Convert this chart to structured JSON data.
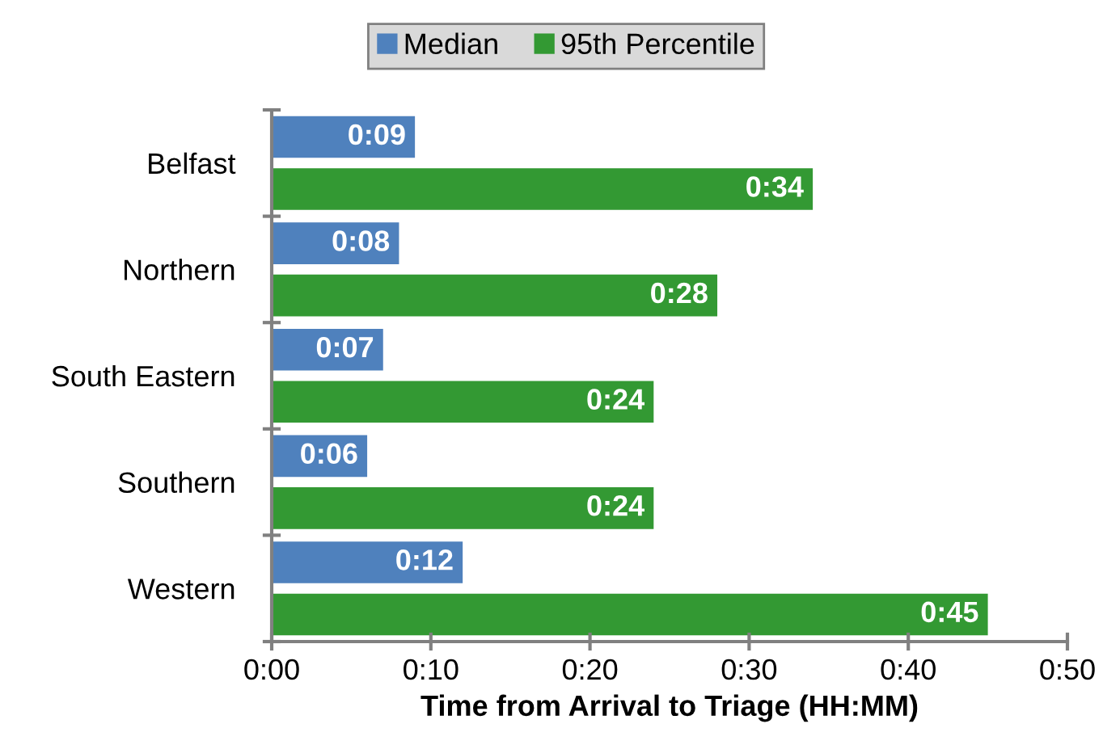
{
  "chart_data": {
    "type": "bar",
    "orientation": "horizontal",
    "xlabel": "Time from Arrival to Triage (HH:MM)",
    "categories": [
      "Belfast",
      "Northern",
      "South Eastern",
      "Southern",
      "Western"
    ],
    "series": [
      {
        "name": "Median",
        "color": "#4f81bd",
        "values": [
          9,
          8,
          7,
          6,
          12
        ],
        "value_labels": [
          "0:09",
          "0:08",
          "0:07",
          "0:06",
          "0:12"
        ]
      },
      {
        "name": "95th Percentile",
        "color": "#339933",
        "values": [
          34,
          28,
          24,
          24,
          45
        ],
        "value_labels": [
          "0:34",
          "0:28",
          "0:24",
          "0:24",
          "0:45"
        ]
      }
    ],
    "xlim": [
      0,
      50
    ],
    "xticks": [
      {
        "value": 0,
        "label": "0:00"
      },
      {
        "value": 10,
        "label": "0:10"
      },
      {
        "value": 20,
        "label": "0:20"
      },
      {
        "value": 30,
        "label": "0:30"
      },
      {
        "value": 40,
        "label": "0:40"
      },
      {
        "value": 50,
        "label": "0:50"
      }
    ],
    "grid": false,
    "legend": "top"
  }
}
